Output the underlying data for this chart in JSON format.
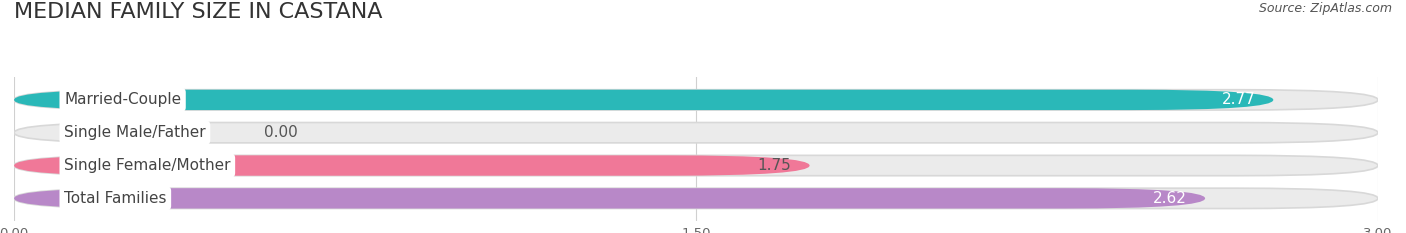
{
  "title": "MEDIAN FAMILY SIZE IN CASTANA",
  "source": "Source: ZipAtlas.com",
  "categories": [
    "Married-Couple",
    "Single Male/Father",
    "Single Female/Mother",
    "Total Families"
  ],
  "values": [
    2.77,
    0.0,
    1.75,
    2.62
  ],
  "bar_colors": [
    "#2ab8b8",
    "#a8b8e8",
    "#f07898",
    "#b888c8"
  ],
  "value_colors": [
    "white",
    "#555555",
    "#555555",
    "white"
  ],
  "xlim": [
    0,
    3.0
  ],
  "xticks": [
    0.0,
    1.5,
    3.0
  ],
  "xtick_labels": [
    "0.00",
    "1.50",
    "3.00"
  ],
  "background_color": "#ffffff",
  "bar_bg_color": "#ebebeb",
  "title_fontsize": 16,
  "source_fontsize": 9,
  "label_fontsize": 11,
  "value_fontsize": 11,
  "bar_height": 0.62,
  "figsize": [
    14.06,
    2.33
  ],
  "dpi": 100
}
